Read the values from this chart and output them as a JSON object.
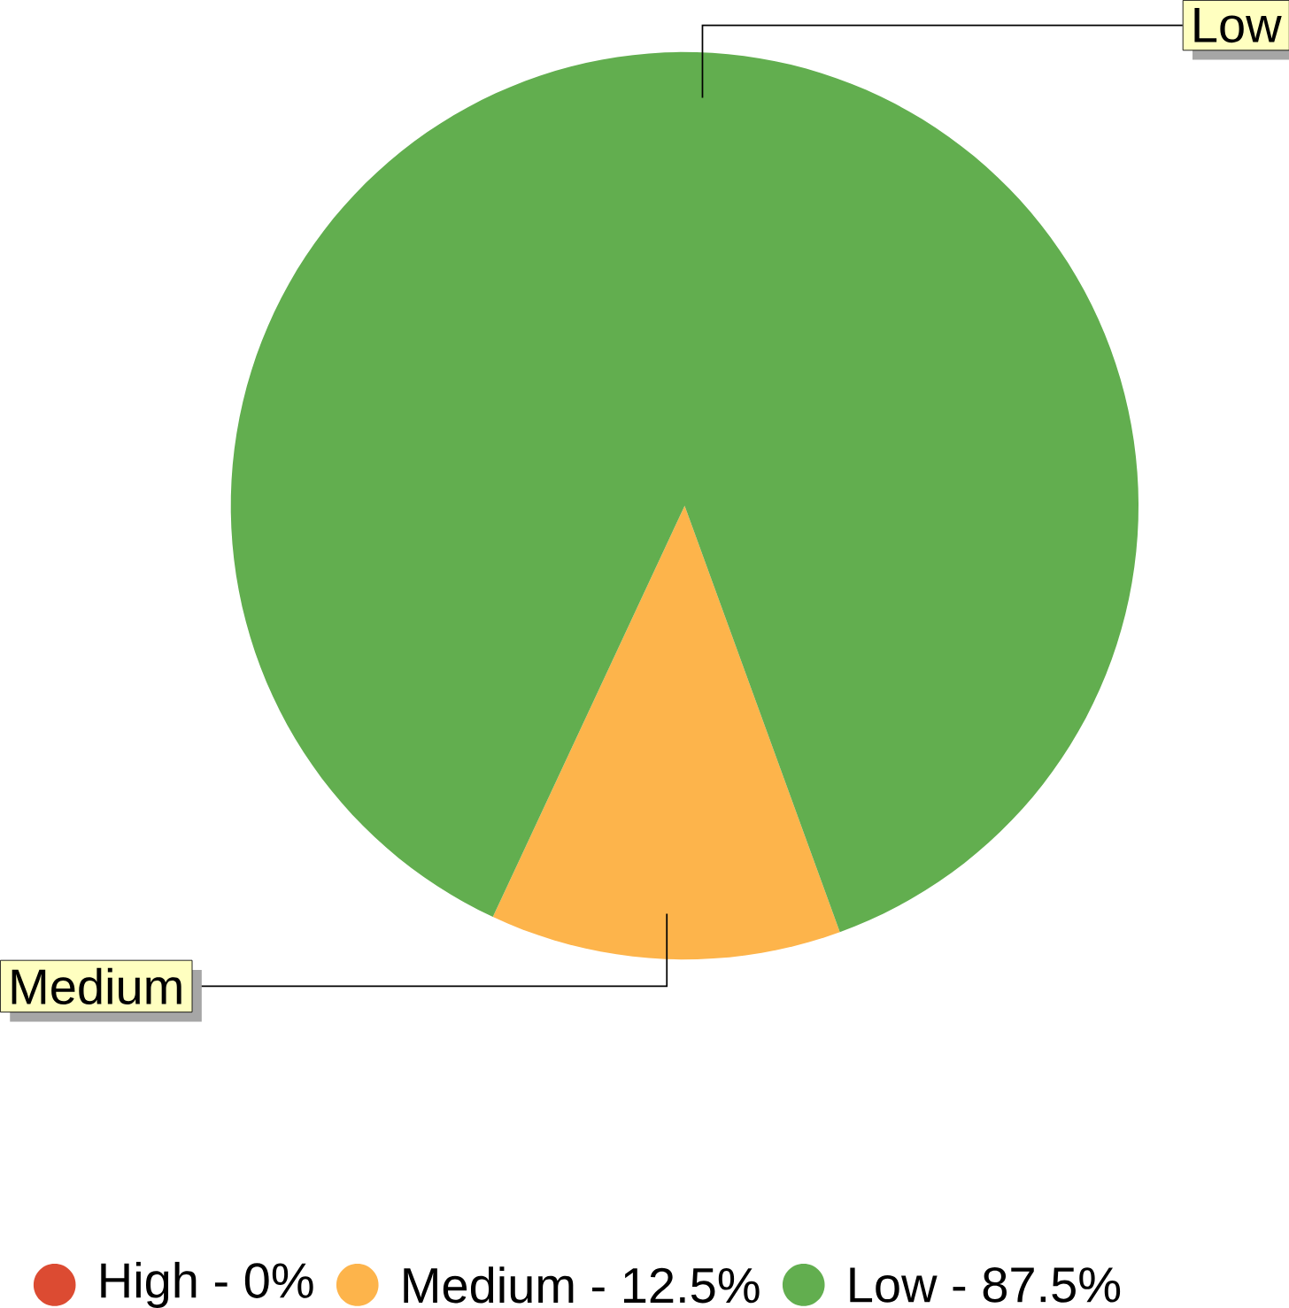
{
  "chart_data": {
    "type": "pie",
    "categories": [
      "High - 0%",
      "Medium - 12.5%",
      "Low - 87.5%"
    ],
    "values": [
      0,
      12.5,
      87.5
    ],
    "colors": [
      "#dc4b32",
      "#fdb44b",
      "#62ae4f"
    ],
    "annotations": [
      "Medium",
      "Low"
    ],
    "legend": "bottom"
  }
}
